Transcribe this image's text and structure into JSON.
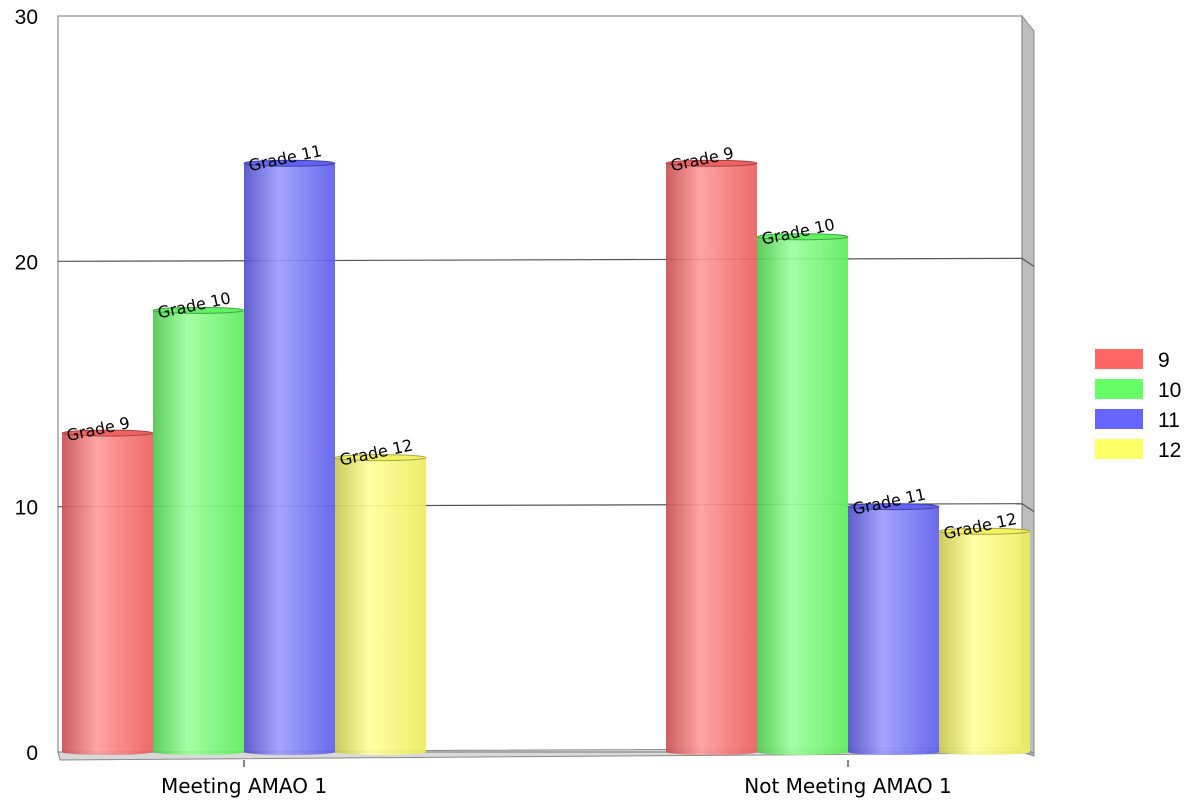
{
  "chart_data": {
    "type": "bar",
    "style": "3d-cylinder",
    "categories": [
      "Meeting AMAO 1",
      "Not Meeting AMAO 1"
    ],
    "series": [
      {
        "name": "9",
        "color": "#FF6666",
        "labels": [
          "Grade 9",
          "Grade 9"
        ],
        "values": [
          13,
          24
        ]
      },
      {
        "name": "10",
        "color": "#66FF66",
        "labels": [
          "Grade 10",
          "Grade 10"
        ],
        "values": [
          18,
          21
        ]
      },
      {
        "name": "11",
        "color": "#6666FF",
        "labels": [
          "Grade 11",
          "Grade 11"
        ],
        "values": [
          24,
          10
        ]
      },
      {
        "name": "12",
        "color": "#FFFF66",
        "labels": [
          "Grade 12",
          "Grade 12"
        ],
        "values": [
          12,
          9
        ]
      }
    ],
    "yticks": [
      "0",
      "10",
      "20",
      "30"
    ],
    "ylim": [
      0,
      30
    ],
    "grid": true,
    "legend_position": "right"
  }
}
